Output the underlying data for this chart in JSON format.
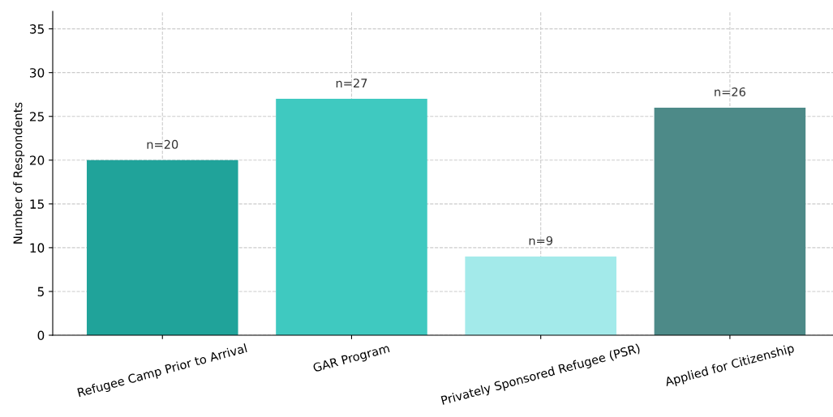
{
  "chart_data": {
    "type": "bar",
    "ylabel": "Number of Respondents",
    "categories": [
      "Refugee Camp Prior to Arrival",
      "GAR Program",
      "Privately Sponsored Refugee (PSR)",
      "Applied for Citizenship"
    ],
    "values": [
      20,
      27,
      9,
      26
    ],
    "colors": [
      "#20a39a",
      "#3fc9c0",
      "#a3eaea",
      "#4d8a88"
    ],
    "value_labels": [
      "n=20",
      "n=27",
      "n=9",
      "n=26"
    ],
    "ylim": [
      0,
      37
    ],
    "yticks": [
      0,
      5,
      10,
      15,
      20,
      25,
      30,
      35
    ],
    "grid": true
  }
}
